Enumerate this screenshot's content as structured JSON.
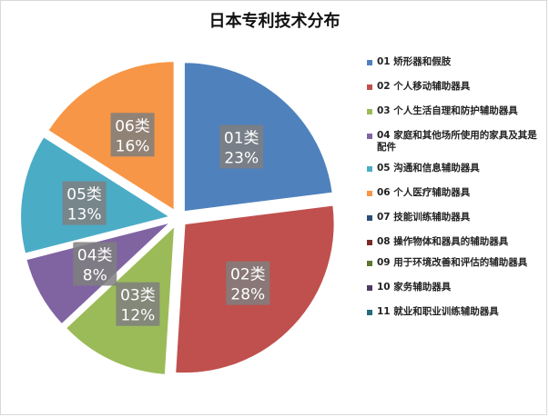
{
  "chart_data": {
    "type": "pie",
    "title": "日本专利技术分布",
    "legend_position": "right",
    "slices": [
      {
        "label": "01类",
        "value": 23,
        "value_label": "23%",
        "color": "#4F81BD"
      },
      {
        "label": "02类",
        "value": 28,
        "value_label": "28%",
        "color": "#C0504D"
      },
      {
        "label": "03类",
        "value": 12,
        "value_label": "12%",
        "color": "#9BBB59"
      },
      {
        "label": "04类",
        "value": 8,
        "value_label": "8%",
        "color": "#8064A2"
      },
      {
        "label": "05类",
        "value": 13,
        "value_label": "13%",
        "color": "#4BACC6"
      },
      {
        "label": "06类",
        "value": 16,
        "value_label": "16%",
        "color": "#F79646"
      }
    ],
    "legend": [
      {
        "text": "01 矫形器和假肢",
        "color": "#4F81BD"
      },
      {
        "text": "02 个人移动辅助器具",
        "color": "#C0504D"
      },
      {
        "text": "03 个人生活自理和防护辅助器具",
        "color": "#9BBB59"
      },
      {
        "text": "04 家庭和其他场所使用的家具及其是配件",
        "color": "#8064A2"
      },
      {
        "text": "05 沟通和信息辅助器具",
        "color": "#4BACC6"
      },
      {
        "text": "06 个人医疗辅助器具",
        "color": "#F79646"
      },
      {
        "text": "07 技能训练辅助器具",
        "color": "#2C4D75"
      },
      {
        "text": "08 操作物体和器具的辅助器具",
        "color": "#772C2A"
      },
      {
        "text": "09 用于环境改善和评估的辅助器具",
        "color": "#5F7530"
      },
      {
        "text": "10 家务辅助器具",
        "color": "#4D3B62"
      },
      {
        "text": "11 就业和职业训练辅助器具",
        "color": "#276A7C"
      }
    ]
  }
}
